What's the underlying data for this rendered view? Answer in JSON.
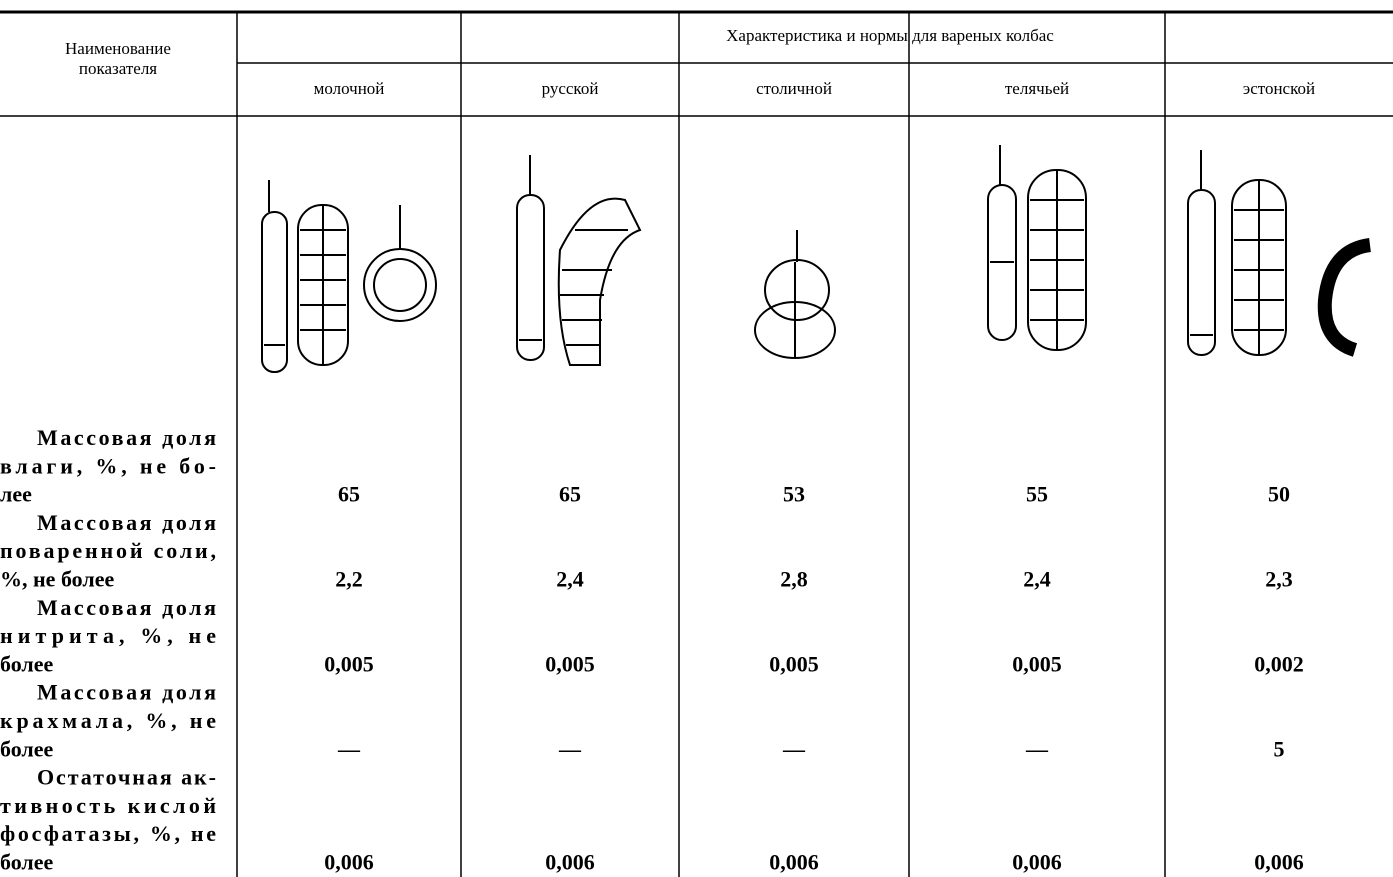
{
  "header": {
    "left_lines": [
      "Наименование",
      "показателя"
    ],
    "group": "Характеристика и нормы для вареных колбас",
    "columns": [
      "молочной",
      "русской",
      "столичной",
      "телячьей",
      "эстонской"
    ]
  },
  "rows": [
    {
      "label_lines": [
        "Массовая доля",
        "влаги, %, не бо-",
        "лее"
      ],
      "values": [
        "65",
        "65",
        "53",
        "55",
        "50"
      ]
    },
    {
      "label_lines": [
        "Массовая доля",
        "поваренной соли,",
        "%, не более"
      ],
      "values": [
        "2,2",
        "2,4",
        "2,8",
        "2,4",
        "2,3"
      ]
    },
    {
      "label_lines": [
        "Массовая доля",
        "нитрита, %, не",
        "более"
      ],
      "values": [
        "0,005",
        "0,005",
        "0,005",
        "0,005",
        "0,002"
      ]
    },
    {
      "label_lines": [
        "Массовая доля",
        "крахмала, %, не",
        "более"
      ],
      "values": [
        "—",
        "—",
        "—",
        "—",
        "5"
      ]
    },
    {
      "label_lines": [
        "Остаточная ак-",
        "тивность кислой",
        "фосфатазы, %, не",
        "более"
      ],
      "values": [
        "0,006",
        "0,006",
        "0,006",
        "0,006",
        "0,006"
      ]
    }
  ]
}
